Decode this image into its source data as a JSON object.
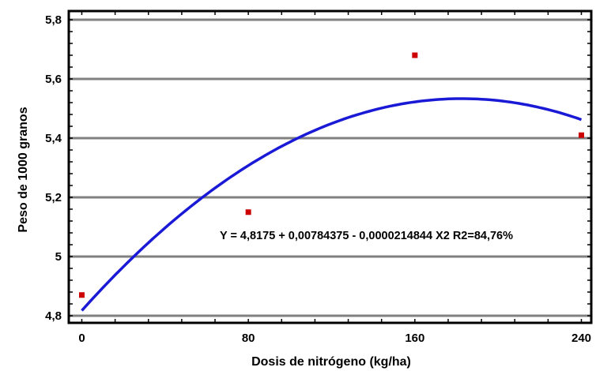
{
  "chart_data": {
    "type": "scatter",
    "xlabel": "Dosis de nitrógeno (kg/ha)",
    "ylabel": "Peso de 1000 granos",
    "xlim": [
      -5,
      245
    ],
    "ylim": [
      4.78,
      5.82
    ],
    "x_ticks": [
      {
        "value": 0,
        "label": "0"
      },
      {
        "value": 80,
        "label": "80"
      },
      {
        "value": 160,
        "label": "160"
      },
      {
        "value": 240,
        "label": "240"
      }
    ],
    "y_ticks": [
      {
        "value": 4.8,
        "label": "4,8"
      },
      {
        "value": 5.0,
        "label": "5"
      },
      {
        "value": 5.2,
        "label": "5,2"
      },
      {
        "value": 5.4,
        "label": "5,4"
      },
      {
        "value": 5.6,
        "label": "5,6"
      },
      {
        "value": 5.8,
        "label": "5,8"
      }
    ],
    "grid": "horizontal",
    "points": [
      {
        "x": 0,
        "y": 4.87
      },
      {
        "x": 80,
        "y": 5.15
      },
      {
        "x": 160,
        "y": 5.68
      },
      {
        "x": 240,
        "y": 5.41
      }
    ],
    "fit": {
      "intercept": 4.8175,
      "linear": 0.00784375,
      "quadratic": -2.14844e-05,
      "x_range": [
        0,
        240
      ]
    },
    "annotation": "Y = 4,8175 + 0,00784375 - 0,0000214844  X2   R2=84,76%",
    "colors": {
      "points": "#cc0000",
      "fit": "#1a1ad6",
      "grid": "#808080",
      "frame": "#000000"
    }
  }
}
